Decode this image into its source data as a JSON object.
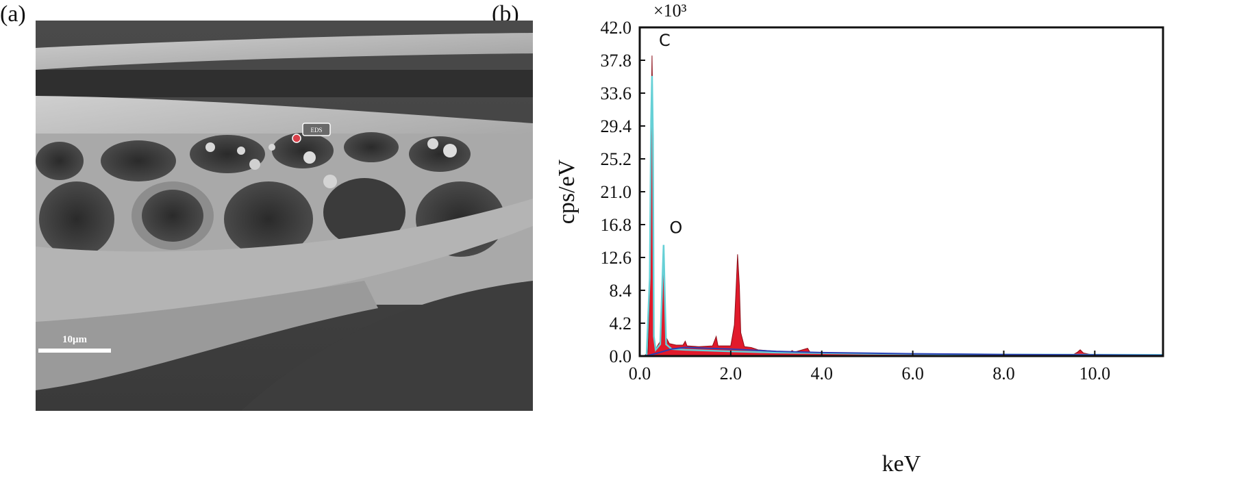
{
  "panels": {
    "a_label": "(a)",
    "b_label": "(b)"
  },
  "sem_image": {
    "scale_bar_label": "10μm",
    "marker_label": "EDS"
  },
  "colors": {
    "spectrum_red": "#e11a2b",
    "spectrum_cyan": "#66d0d6",
    "spectrum_blue": "#2a3fb4",
    "axis": "#111111"
  },
  "chart_data": {
    "type": "area",
    "title": "",
    "xlabel": "keV",
    "ylabel": "cps/eV",
    "y_multiplier": "×10³",
    "xlim": [
      0,
      11.5
    ],
    "ylim": [
      0,
      42.0
    ],
    "x_ticks": [
      "0.0",
      "2.0",
      "4.0",
      "6.0",
      "8.0",
      "10.0"
    ],
    "y_ticks": [
      "0.0",
      "4.2",
      "8.4",
      "12.6",
      "16.8",
      "21.0",
      "25.2",
      "29.4",
      "33.6",
      "37.8",
      "42.0"
    ],
    "peak_labels": [
      {
        "label": "C",
        "x": 0.277,
        "y": 38.4
      },
      {
        "label": "O",
        "x": 0.525,
        "y": 14.5
      }
    ],
    "series": [
      {
        "name": "spectrum (red fill)",
        "points": [
          [
            0.0,
            0
          ],
          [
            0.1,
            0
          ],
          [
            0.18,
            0.5
          ],
          [
            0.22,
            8
          ],
          [
            0.25,
            30
          ],
          [
            0.27,
            38.4
          ],
          [
            0.29,
            30
          ],
          [
            0.31,
            3
          ],
          [
            0.34,
            0.8
          ],
          [
            0.38,
            1.2
          ],
          [
            0.42,
            1.6
          ],
          [
            0.46,
            2.0
          ],
          [
            0.49,
            6
          ],
          [
            0.51,
            11
          ],
          [
            0.525,
            12.5
          ],
          [
            0.54,
            9
          ],
          [
            0.57,
            2.5
          ],
          [
            0.65,
            1.6
          ],
          [
            0.8,
            1.4
          ],
          [
            0.95,
            1.4
          ],
          [
            1.0,
            1.9
          ],
          [
            1.04,
            1.3
          ],
          [
            1.3,
            1.2
          ],
          [
            1.6,
            1.3
          ],
          [
            1.68,
            2.5
          ],
          [
            1.72,
            1.3
          ],
          [
            2.0,
            1.3
          ],
          [
            2.08,
            4
          ],
          [
            2.12,
            9
          ],
          [
            2.15,
            13.0
          ],
          [
            2.19,
            9
          ],
          [
            2.22,
            3
          ],
          [
            2.3,
            1.2
          ],
          [
            2.45,
            1.1
          ],
          [
            2.6,
            0.8
          ],
          [
            3.0,
            0.6
          ],
          [
            3.3,
            0.5
          ],
          [
            3.35,
            0.7
          ],
          [
            3.4,
            0.5
          ],
          [
            3.69,
            1.0
          ],
          [
            3.75,
            0.4
          ],
          [
            4.5,
            0.3
          ],
          [
            6.0,
            0.2
          ],
          [
            8.0,
            0.15
          ],
          [
            9.5,
            0.1
          ],
          [
            9.62,
            0.5
          ],
          [
            9.68,
            0.8
          ],
          [
            9.75,
            0.4
          ],
          [
            10.0,
            0.1
          ],
          [
            11.5,
            0.05
          ]
        ]
      },
      {
        "name": "spectrum (cyan line)",
        "points": [
          [
            0.0,
            0
          ],
          [
            0.15,
            0
          ],
          [
            0.22,
            10
          ],
          [
            0.25,
            30
          ],
          [
            0.27,
            35.8
          ],
          [
            0.29,
            28
          ],
          [
            0.31,
            2.5
          ],
          [
            0.35,
            0.8
          ],
          [
            0.45,
            1.5
          ],
          [
            0.5,
            10
          ],
          [
            0.525,
            14.2
          ],
          [
            0.55,
            8
          ],
          [
            0.58,
            1.5
          ],
          [
            0.7,
            0.9
          ],
          [
            1.0,
            0.8
          ],
          [
            2.0,
            0.6
          ],
          [
            3.0,
            0.45
          ],
          [
            5.0,
            0.3
          ],
          [
            8.0,
            0.2
          ],
          [
            11.5,
            0.15
          ]
        ]
      },
      {
        "name": "background (blue line)",
        "points": [
          [
            0.0,
            0
          ],
          [
            0.2,
            0.1
          ],
          [
            0.4,
            0.4
          ],
          [
            0.7,
            0.9
          ],
          [
            1.0,
            1.1
          ],
          [
            1.5,
            1.0
          ],
          [
            2.0,
            0.9
          ],
          [
            3.0,
            0.6
          ],
          [
            4.0,
            0.45
          ],
          [
            6.0,
            0.3
          ],
          [
            8.0,
            0.2
          ],
          [
            10.0,
            0.15
          ],
          [
            11.5,
            0.1
          ]
        ]
      }
    ]
  }
}
